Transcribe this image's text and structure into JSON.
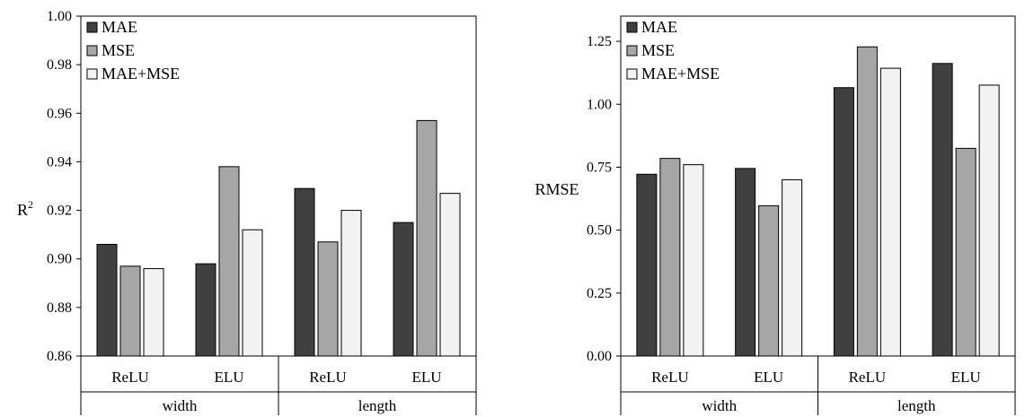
{
  "chart_data": [
    {
      "type": "bar",
      "ylabel": "R",
      "ylabel_superscript": "2",
      "ylim": [
        0.86,
        1.0
      ],
      "yticks": [
        "0.86",
        "0.88",
        "0.90",
        "0.92",
        "0.94",
        "0.96",
        "0.98",
        "1.00"
      ],
      "categories": [
        "ReLU",
        "ELU",
        "ReLU",
        "ELU"
      ],
      "groups": [
        {
          "label": "width",
          "span": 2
        },
        {
          "label": "length",
          "span": 2
        }
      ],
      "series": [
        {
          "name": "MAE",
          "color": "#404040",
          "values": [
            0.906,
            0.898,
            0.929,
            0.915
          ]
        },
        {
          "name": "MSE",
          "color": "#a6a6a6",
          "values": [
            0.897,
            0.938,
            0.907,
            0.957
          ]
        },
        {
          "name": "MAE+MSE",
          "color": "#f2f2f2",
          "values": [
            0.896,
            0.912,
            0.92,
            0.927
          ]
        }
      ],
      "legend_position": "top-left",
      "grid": false
    },
    {
      "type": "bar",
      "ylabel": "RMSE",
      "ylim": [
        0.0,
        1.35
      ],
      "yticks": [
        "0.00",
        "0.25",
        "0.50",
        "0.75",
        "1.00",
        "1.25"
      ],
      "categories": [
        "ReLU",
        "ELU",
        "ReLU",
        "ELU"
      ],
      "groups": [
        {
          "label": "width",
          "span": 2
        },
        {
          "label": "length",
          "span": 2
        }
      ],
      "series": [
        {
          "name": "MAE",
          "color": "#404040",
          "values": [
            0.722,
            0.745,
            1.066,
            1.162
          ]
        },
        {
          "name": "MSE",
          "color": "#a6a6a6",
          "values": [
            0.785,
            0.597,
            1.228,
            0.825
          ]
        },
        {
          "name": "MAE+MSE",
          "color": "#f2f2f2",
          "values": [
            0.76,
            0.7,
            1.143,
            1.076
          ]
        }
      ],
      "legend_position": "top-left",
      "grid": false
    }
  ]
}
